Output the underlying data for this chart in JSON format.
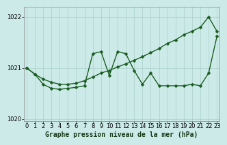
{
  "title": "Graphe pression niveau de la mer (hPa)",
  "background_color": "#cceae8",
  "grid_color": "#aacfc8",
  "line_color": "#1a5c20",
  "x_hours": [
    0,
    1,
    2,
    3,
    4,
    5,
    6,
    7,
    8,
    9,
    10,
    11,
    12,
    13,
    14,
    15,
    16,
    17,
    18,
    19,
    20,
    21,
    22,
    23
  ],
  "line1": [
    1021.0,
    1020.88,
    1020.78,
    1020.72,
    1020.68,
    1020.68,
    1020.7,
    1020.75,
    1020.82,
    1020.9,
    1020.95,
    1021.02,
    1021.08,
    1021.15,
    1021.22,
    1021.3,
    1021.38,
    1021.48,
    1021.55,
    1021.65,
    1021.72,
    1021.8,
    1022.0,
    1021.72
  ],
  "line2": [
    1021.0,
    1020.88,
    1020.68,
    1020.6,
    1020.58,
    1020.6,
    1020.62,
    1020.65,
    1021.28,
    1021.32,
    1020.85,
    1021.32,
    1021.28,
    1020.95,
    1020.68,
    1020.9,
    1020.65,
    1020.65,
    1020.65,
    1020.65,
    1020.68,
    1020.65,
    1020.9,
    1021.62
  ],
  "ylim": [
    1019.95,
    1022.2
  ],
  "yticks": [
    1020,
    1021,
    1022
  ],
  "xticks": [
    0,
    1,
    2,
    3,
    4,
    5,
    6,
    7,
    8,
    9,
    10,
    11,
    12,
    13,
    14,
    15,
    16,
    17,
    18,
    19,
    20,
    21,
    22,
    23
  ],
  "xlim": [
    -0.3,
    23.3
  ],
  "marker": "D",
  "marker_size": 2.5,
  "line_width": 1.0,
  "title_fontsize": 7,
  "tick_fontsize": 6
}
